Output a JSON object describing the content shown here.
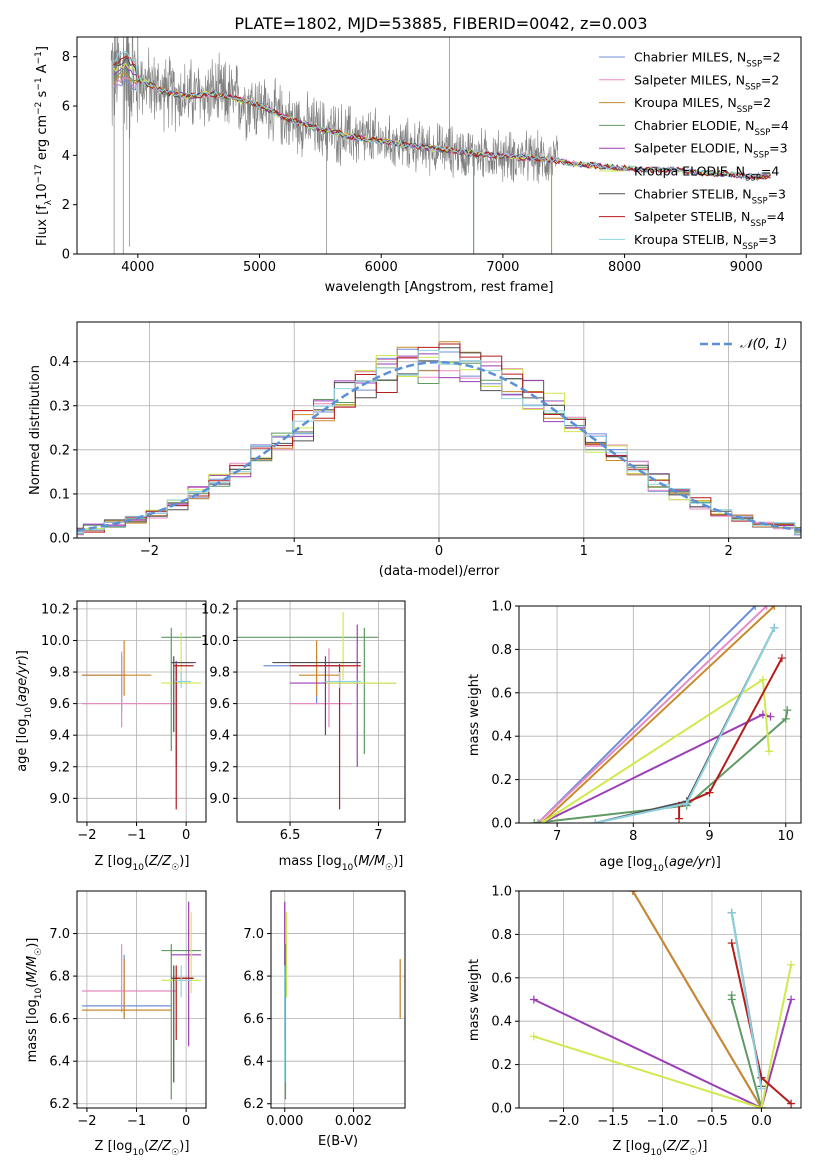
{
  "figure_title": "PLATE=1802, MJD=53885, FIBERID=0042, z=0.003",
  "colors": {
    "spectrum": "#808080",
    "grid": "#b0b0b0",
    "normal_curve": "#5b8fd6",
    "models": [
      "#6f8fdc",
      "#e58bc3",
      "#c88a2c",
      "#5f9a63",
      "#9b3fb5",
      "#cfe94e",
      "#505050",
      "#b51c1c",
      "#8ed2e2"
    ],
    "vertical_lines": [
      "#6f8fdc",
      "#e58bc3",
      "#e07b2a",
      "#5f9a63",
      "#9b3fb5",
      "#cfe94e",
      "#505050",
      "#b51c1c",
      "#8ed2e2"
    ]
  },
  "legend_spectrum": [
    {
      "name": "Chabrier MILES",
      "nssp": "2"
    },
    {
      "name": "Salpeter MILES",
      "nssp": "2"
    },
    {
      "name": "Kroupa MILES",
      "nssp": "2"
    },
    {
      "name": "Chabrier ELODIE",
      "nssp": "4"
    },
    {
      "name": "Salpeter ELODIE",
      "nssp": "3"
    },
    {
      "name": "Kroupa ELODIE",
      "nssp": "4"
    },
    {
      "name": "Chabrier STELIB",
      "nssp": "3"
    },
    {
      "name": "Salpeter STELIB",
      "nssp": "4"
    },
    {
      "name": "Kroupa STELIB",
      "nssp": "3"
    }
  ],
  "legend_hist": "𝒩(0, 1)",
  "chart_data": [
    {
      "id": "spectrum",
      "type": "line",
      "xlabel": "wavelength [Angstrom, rest frame]",
      "ylabel": "Flux [f_λ 10^-17 erg cm^-2 s^-1 A^-1]",
      "xlim": [
        3500,
        9450
      ],
      "ylim": [
        0,
        8.8
      ],
      "xticks": [
        4000,
        5000,
        6000,
        7000,
        8000,
        9000
      ],
      "yticks": [
        0,
        2,
        4,
        6,
        8
      ],
      "grid": false,
      "legend": "top-right",
      "continuum": {
        "x": [
          3800,
          3900,
          4000,
          4200,
          4400,
          4600,
          4800,
          5000,
          5200,
          5400,
          5600,
          5800,
          6000,
          6200,
          6400,
          6600,
          6800,
          7000,
          7200,
          7400,
          7600,
          7800,
          8000,
          8200,
          8400,
          8600,
          8800,
          9000,
          9200
        ],
        "y": [
          7.3,
          7.6,
          7.1,
          6.6,
          6.4,
          6.5,
          6.3,
          6.05,
          5.55,
          5.2,
          4.95,
          4.72,
          4.58,
          4.42,
          4.3,
          4.18,
          4.05,
          3.98,
          3.9,
          3.82,
          3.65,
          3.56,
          3.48,
          3.42,
          3.42,
          3.3,
          3.25,
          3.18,
          3.15
        ]
      },
      "noisy_range": [
        3780,
        7450
      ],
      "noise_amplitude_note": "large between 3800-7400"
    },
    {
      "id": "residuals",
      "type": "line",
      "xlabel": "(data-model)/error",
      "ylabel": "Normed distribution",
      "xlim": [
        -2.5,
        2.5
      ],
      "ylim": [
        0,
        0.49
      ],
      "xticks": [
        -2,
        -1,
        0,
        1,
        2
      ],
      "yticks": [
        0.0,
        0.1,
        0.2,
        0.3,
        0.4
      ],
      "grid": true,
      "legend": "top-right",
      "series": [
        {
          "name": "𝒩(0, 1)",
          "mean": 0,
          "sigma": 1
        }
      ]
    },
    {
      "id": "age_vs_Z",
      "type": "scatter",
      "xlabel": "Z [log10(Z/Z☉)]",
      "ylabel": "age [log10(age/yr)]",
      "xlim": [
        -2.2,
        0.4
      ],
      "ylim": [
        8.85,
        10.25
      ],
      "xticks": [
        -2,
        -1,
        0
      ],
      "yticks": [
        9.0,
        9.2,
        9.4,
        9.6,
        9.8,
        10.0,
        10.2
      ],
      "grid": true
    },
    {
      "id": "age_vs_mass",
      "type": "scatter",
      "xlabel": "mass [log10(M/M☉)]",
      "xlim": [
        6.2,
        7.15
      ],
      "ylim": [
        8.85,
        10.25
      ],
      "xticks": [
        6.5,
        7.0
      ],
      "yticks": [
        9.0,
        9.2,
        9.4,
        9.6,
        9.8,
        10.0,
        10.2
      ],
      "grid": true
    },
    {
      "id": "weight_vs_age",
      "type": "line",
      "xlabel": "age [log10(age/yr)]",
      "ylabel": "mass weight",
      "xlim": [
        6.5,
        10.2
      ],
      "ylim": [
        0,
        1.0
      ],
      "xticks": [
        7,
        8,
        9,
        10
      ],
      "yticks": [
        0.0,
        0.2,
        0.4,
        0.6,
        0.8,
        1.0
      ],
      "grid": true,
      "series": [
        {
          "x": [
            6.75,
            9.6
          ],
          "y": [
            0.0,
            1.0
          ]
        },
        {
          "x": [
            6.75,
            9.75
          ],
          "y": [
            0.0,
            1.0
          ]
        },
        {
          "x": [
            6.8,
            9.85
          ],
          "y": [
            0.0,
            1.0
          ]
        },
        {
          "x": [
            6.7,
            8.7,
            10.0,
            10.02
          ],
          "y": [
            0.0,
            0.08,
            0.48,
            0.52
          ]
        },
        {
          "x": [
            6.8,
            9.7,
            9.8
          ],
          "y": [
            0.0,
            0.5,
            0.49
          ]
        },
        {
          "x": [
            6.8,
            9.7,
            9.78
          ],
          "y": [
            0.0,
            0.66,
            0.33
          ]
        },
        {
          "x": [
            7.5,
            8.7,
            9.85
          ],
          "y": [
            0.0,
            0.1,
            0.9
          ]
        },
        {
          "x": [
            8.6,
            8.6,
            9.0,
            9.95
          ],
          "y": [
            0.02,
            0.08,
            0.14,
            0.76
          ]
        },
        {
          "x": [
            7.5,
            8.7,
            9.85
          ],
          "y": [
            0.0,
            0.09,
            0.9
          ]
        }
      ]
    },
    {
      "id": "mass_vs_Z",
      "type": "scatter",
      "xlabel": "Z [log10(Z/Z☉)]",
      "ylabel": "mass [log10(M/M☉)]",
      "xlim": [
        -2.2,
        0.4
      ],
      "ylim": [
        6.18,
        7.2
      ],
      "xticks": [
        -2,
        -1,
        0
      ],
      "yticks": [
        6.2,
        6.4,
        6.6,
        6.8,
        7.0
      ],
      "grid": true
    },
    {
      "id": "mass_vs_ebv",
      "type": "scatter",
      "xlabel": "E(B-V)",
      "xlim": [
        -0.0004,
        0.0035
      ],
      "ylim": [
        6.18,
        7.2
      ],
      "xticks": [
        0.0,
        0.002
      ],
      "xtick_labels": [
        "0.000",
        "0.002"
      ],
      "yticks": [
        6.2,
        6.4,
        6.6,
        6.8,
        7.0
      ],
      "grid": true
    },
    {
      "id": "weight_vs_Z",
      "type": "line",
      "xlabel": "Z [log10(Z/Z☉)]",
      "ylabel": "mass weight",
      "xlim": [
        -2.45,
        0.4
      ],
      "ylim": [
        0,
        1.0
      ],
      "xticks": [
        -2.0,
        -1.5,
        -1.0,
        -0.5,
        0.0
      ],
      "xtick_labels": [
        "−2.0",
        "−1.5",
        "−1.0",
        "−0.5",
        "0.0"
      ],
      "yticks": [
        0.0,
        0.2,
        0.4,
        0.6,
        0.8,
        1.0
      ],
      "grid": true,
      "series": [
        {
          "x": [
            0.0,
            -1.3
          ],
          "y": [
            0.0,
            1.0
          ]
        },
        {
          "x": [
            0.0,
            -1.3
          ],
          "y": [
            0.0,
            1.0
          ]
        },
        {
          "x": [
            0.0,
            -1.3
          ],
          "y": [
            0.0,
            1.0
          ]
        },
        {
          "x": [
            0.0,
            -0.3,
            -0.3
          ],
          "y": [
            0.0,
            0.5,
            0.52
          ]
        },
        {
          "x": [
            0.0,
            -2.3,
            0.0,
            0.3
          ],
          "y": [
            0.0,
            0.5,
            0.0,
            0.5
          ]
        },
        {
          "x": [
            0.0,
            -2.3,
            0.0,
            0.3
          ],
          "y": [
            0.0,
            0.33,
            0.0,
            0.66
          ]
        },
        {
          "x": [
            0.0,
            -0.3
          ],
          "y": [
            0.1,
            0.9
          ]
        },
        {
          "x": [
            0.0,
            -0.3,
            0.0,
            0.3
          ],
          "y": [
            0.14,
            0.76,
            0.14,
            0.02
          ]
        },
        {
          "x": [
            0.0,
            -0.3
          ],
          "y": [
            0.09,
            0.9
          ]
        }
      ]
    }
  ]
}
